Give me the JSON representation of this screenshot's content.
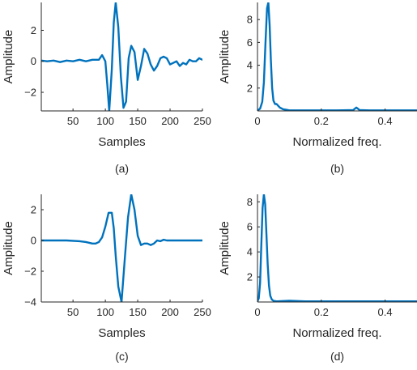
{
  "chart_data": [
    {
      "type": "line",
      "caption": "(a)",
      "xlabel": "Samples",
      "ylabel": "Amplitude",
      "xlim": [
        1,
        250
      ],
      "ylim": [
        -3.2,
        3.8
      ],
      "xticks": [
        50,
        100,
        150,
        200,
        250
      ],
      "yticks": [
        -2,
        0,
        2
      ],
      "color": "#0072BD",
      "x": [
        1,
        10,
        20,
        30,
        40,
        50,
        60,
        70,
        80,
        90,
        95,
        100,
        103,
        106,
        110,
        113,
        116,
        120,
        124,
        128,
        132,
        136,
        140,
        145,
        150,
        155,
        160,
        165,
        170,
        175,
        180,
        185,
        190,
        195,
        200,
        205,
        210,
        215,
        220,
        225,
        230,
        235,
        240,
        245,
        250
      ],
      "y": [
        0.05,
        0.0,
        0.05,
        -0.05,
        0.05,
        0.0,
        0.1,
        0.0,
        0.1,
        0.1,
        0.4,
        0.0,
        -1.5,
        -3.2,
        -0.5,
        2.5,
        3.8,
        2.2,
        -1.0,
        -3.0,
        -2.6,
        0.2,
        1.0,
        0.6,
        -1.2,
        -0.3,
        0.8,
        0.5,
        -0.2,
        -0.6,
        -0.3,
        0.2,
        0.3,
        0.2,
        -0.2,
        -0.1,
        0.0,
        -0.3,
        -0.1,
        -0.2,
        0.1,
        0.0,
        0.0,
        0.2,
        0.1
      ]
    },
    {
      "type": "line",
      "caption": "(b)",
      "xlabel": "Normalized freq.",
      "ylabel": "Amplitude",
      "xlim": [
        0,
        0.5
      ],
      "ylim": [
        0,
        9.5
      ],
      "xticks": [
        0,
        0.2,
        0.4
      ],
      "xtick_labels": [
        "0",
        "0.2",
        "0.4"
      ],
      "yticks": [
        2,
        4,
        6,
        8
      ],
      "color": "#0072BD",
      "x": [
        0,
        0.008,
        0.015,
        0.02,
        0.025,
        0.03,
        0.034,
        0.038,
        0.042,
        0.046,
        0.05,
        0.055,
        0.06,
        0.065,
        0.07,
        0.08,
        0.09,
        0.1,
        0.15,
        0.2,
        0.25,
        0.3,
        0.31,
        0.32,
        0.35,
        0.4,
        0.45,
        0.5
      ],
      "y": [
        0.05,
        0.2,
        0.8,
        2.5,
        6.0,
        9.0,
        9.5,
        7.5,
        4.5,
        2.0,
        0.9,
        0.6,
        0.6,
        0.45,
        0.3,
        0.15,
        0.1,
        0.05,
        0.05,
        0.05,
        0.05,
        0.08,
        0.3,
        0.08,
        0.05,
        0.05,
        0.05,
        0.05
      ]
    },
    {
      "type": "line",
      "caption": "(c)",
      "xlabel": "Samples",
      "ylabel": "Amplitude",
      "xlim": [
        1,
        250
      ],
      "ylim": [
        -4,
        3
      ],
      "xticks": [
        50,
        100,
        150,
        200,
        250
      ],
      "yticks": [
        -4,
        -2,
        0,
        2
      ],
      "color": "#0072BD",
      "x": [
        1,
        20,
        40,
        60,
        70,
        80,
        85,
        90,
        95,
        100,
        105,
        110,
        113,
        116,
        120,
        125,
        130,
        135,
        140,
        145,
        150,
        155,
        160,
        165,
        170,
        175,
        180,
        185,
        190,
        195,
        200,
        220,
        250
      ],
      "y": [
        0.0,
        0.0,
        0.0,
        -0.05,
        -0.1,
        -0.2,
        -0.2,
        -0.1,
        0.2,
        0.9,
        1.8,
        1.8,
        0.8,
        -1.0,
        -3.0,
        -4.0,
        -1.2,
        1.5,
        3.0,
        2.0,
        0.3,
        -0.3,
        -0.2,
        -0.2,
        -0.3,
        -0.2,
        0.0,
        -0.05,
        0.05,
        0.0,
        0.0,
        0.0,
        0.0
      ]
    },
    {
      "type": "line",
      "caption": "(d)",
      "xlabel": "Normalized freq.",
      "ylabel": "Amplitude",
      "xlim": [
        0,
        0.5
      ],
      "ylim": [
        0,
        8.6
      ],
      "xticks": [
        0,
        0.2,
        0.4
      ],
      "xtick_labels": [
        "0",
        "0.2",
        "0.4"
      ],
      "yticks": [
        2,
        4,
        6,
        8
      ],
      "color": "#0072BD",
      "x": [
        0,
        0.004,
        0.008,
        0.012,
        0.016,
        0.02,
        0.024,
        0.028,
        0.032,
        0.036,
        0.04,
        0.045,
        0.05,
        0.06,
        0.08,
        0.1,
        0.15,
        0.2,
        0.3,
        0.4,
        0.5
      ],
      "y": [
        0.05,
        0.3,
        1.5,
        4.5,
        7.5,
        8.6,
        7.8,
        5.5,
        3.0,
        1.3,
        0.5,
        0.2,
        0.1,
        0.05,
        0.08,
        0.1,
        0.05,
        0.05,
        0.05,
        0.05,
        0.05
      ]
    }
  ]
}
